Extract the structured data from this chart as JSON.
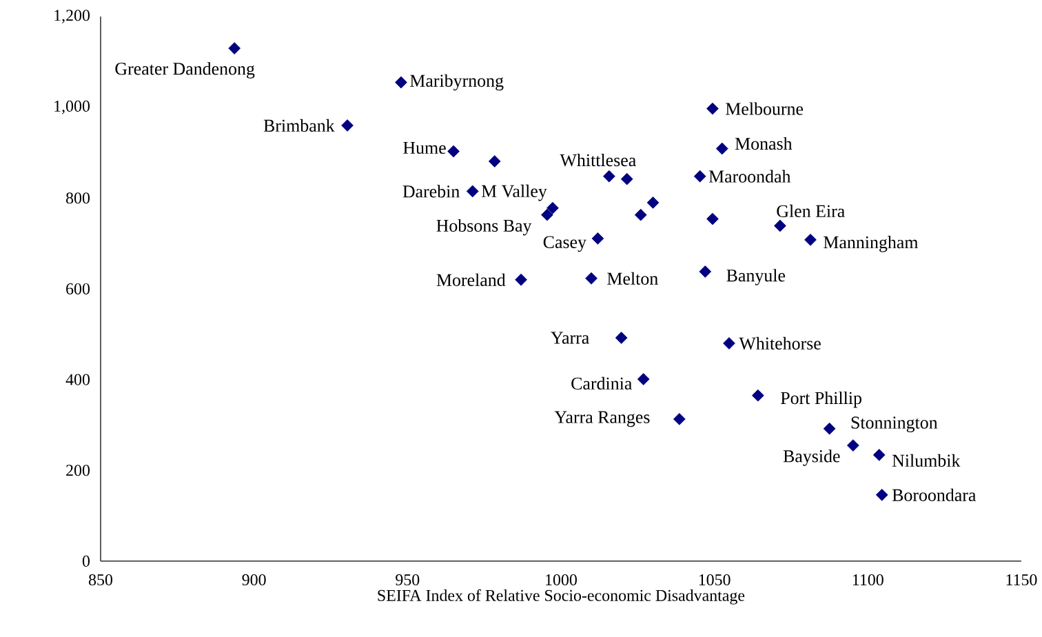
{
  "chart_data": {
    "type": "scatter",
    "xlabel": "SEIFA Index of Relative Socio-economic Disadvantage",
    "color": "#000080",
    "marker": "diamond",
    "grid": false,
    "xlim": [
      850,
      1150
    ],
    "xticks": [
      850,
      900,
      950,
      1000,
      1050,
      1100,
      1150
    ],
    "ylim": [
      0,
      1200
    ],
    "yticks": [
      0,
      200,
      400,
      600,
      800,
      {
        "value": 1000,
        "label": "1,000"
      },
      {
        "value": 1200,
        "label": "1,200"
      }
    ],
    "x": [
      893.6,
      947.9,
      930.4,
      965,
      978.4,
      971.2,
      995.5,
      997.3,
      1012,
      987,
      1009.9,
      1015.7,
      1021.5,
      1026,
      1030,
      1045.3,
      1049.4,
      1049.4,
      1052.5,
      1071.4,
      1081.3,
      1047,
      1019.7,
      1054.8,
      1026.9,
      1064.2,
      1038.6,
      1087.5,
      1095.2,
      1103.7,
      1104.6
    ],
    "values": [
      1130,
      1055,
      960,
      903,
      881,
      815,
      763,
      778,
      711,
      620,
      623,
      848,
      842,
      763,
      790,
      848,
      754,
      997,
      909,
      739,
      708,
      638,
      492,
      480,
      401,
      365,
      313,
      292,
      255,
      234,
      146
    ],
    "annotations": [
      {
        "text": "Greater Dandenong",
        "x": 893.6,
        "y": 1130
      },
      {
        "text": "Maribyrnong",
        "x": 947.9,
        "y": 1055
      },
      {
        "text": "Brimbank",
        "x": 930.4,
        "y": 960
      },
      {
        "text": "Hume",
        "x": 965,
        "y": 903
      },
      {
        "text": "Darebin",
        "x": 971.2,
        "y": 815
      },
      {
        "text": "M Valley",
        "x": 997.3,
        "y": 778
      },
      {
        "text": "Hobsons Bay",
        "x": 995.5,
        "y": 763
      },
      {
        "text": "Casey",
        "x": 1012,
        "y": 711
      },
      {
        "text": "Moreland",
        "x": 987,
        "y": 620
      },
      {
        "text": "Melton",
        "x": 1009.9,
        "y": 623
      },
      {
        "text": "Whittlesea",
        "x": 1015.7,
        "y": 848
      },
      {
        "text": "Maroondah",
        "x": 1045.3,
        "y": 848
      },
      {
        "text": "Melbourne",
        "x": 1049.4,
        "y": 997
      },
      {
        "text": "Monash",
        "x": 1052.5,
        "y": 909
      },
      {
        "text": "Glen Eira",
        "x": 1071.4,
        "y": 739
      },
      {
        "text": "Manningham",
        "x": 1081.3,
        "y": 708
      },
      {
        "text": "Banyule",
        "x": 1047,
        "y": 638
      },
      {
        "text": "Yarra",
        "x": 1019.7,
        "y": 492
      },
      {
        "text": "Whitehorse",
        "x": 1054.8,
        "y": 480
      },
      {
        "text": "Cardinia",
        "x": 1026.9,
        "y": 401
      },
      {
        "text": "Port Phillip",
        "x": 1064.2,
        "y": 365
      },
      {
        "text": "Yarra Ranges",
        "x": 1038.6,
        "y": 313
      },
      {
        "text": "Stonnington",
        "x": 1087.5,
        "y": 292
      },
      {
        "text": "Bayside",
        "x": 1095.2,
        "y": 255
      },
      {
        "text": "Nilumbik",
        "x": 1103.7,
        "y": 234
      },
      {
        "text": "Boroondara",
        "x": 1104.6,
        "y": 146
      }
    ]
  }
}
